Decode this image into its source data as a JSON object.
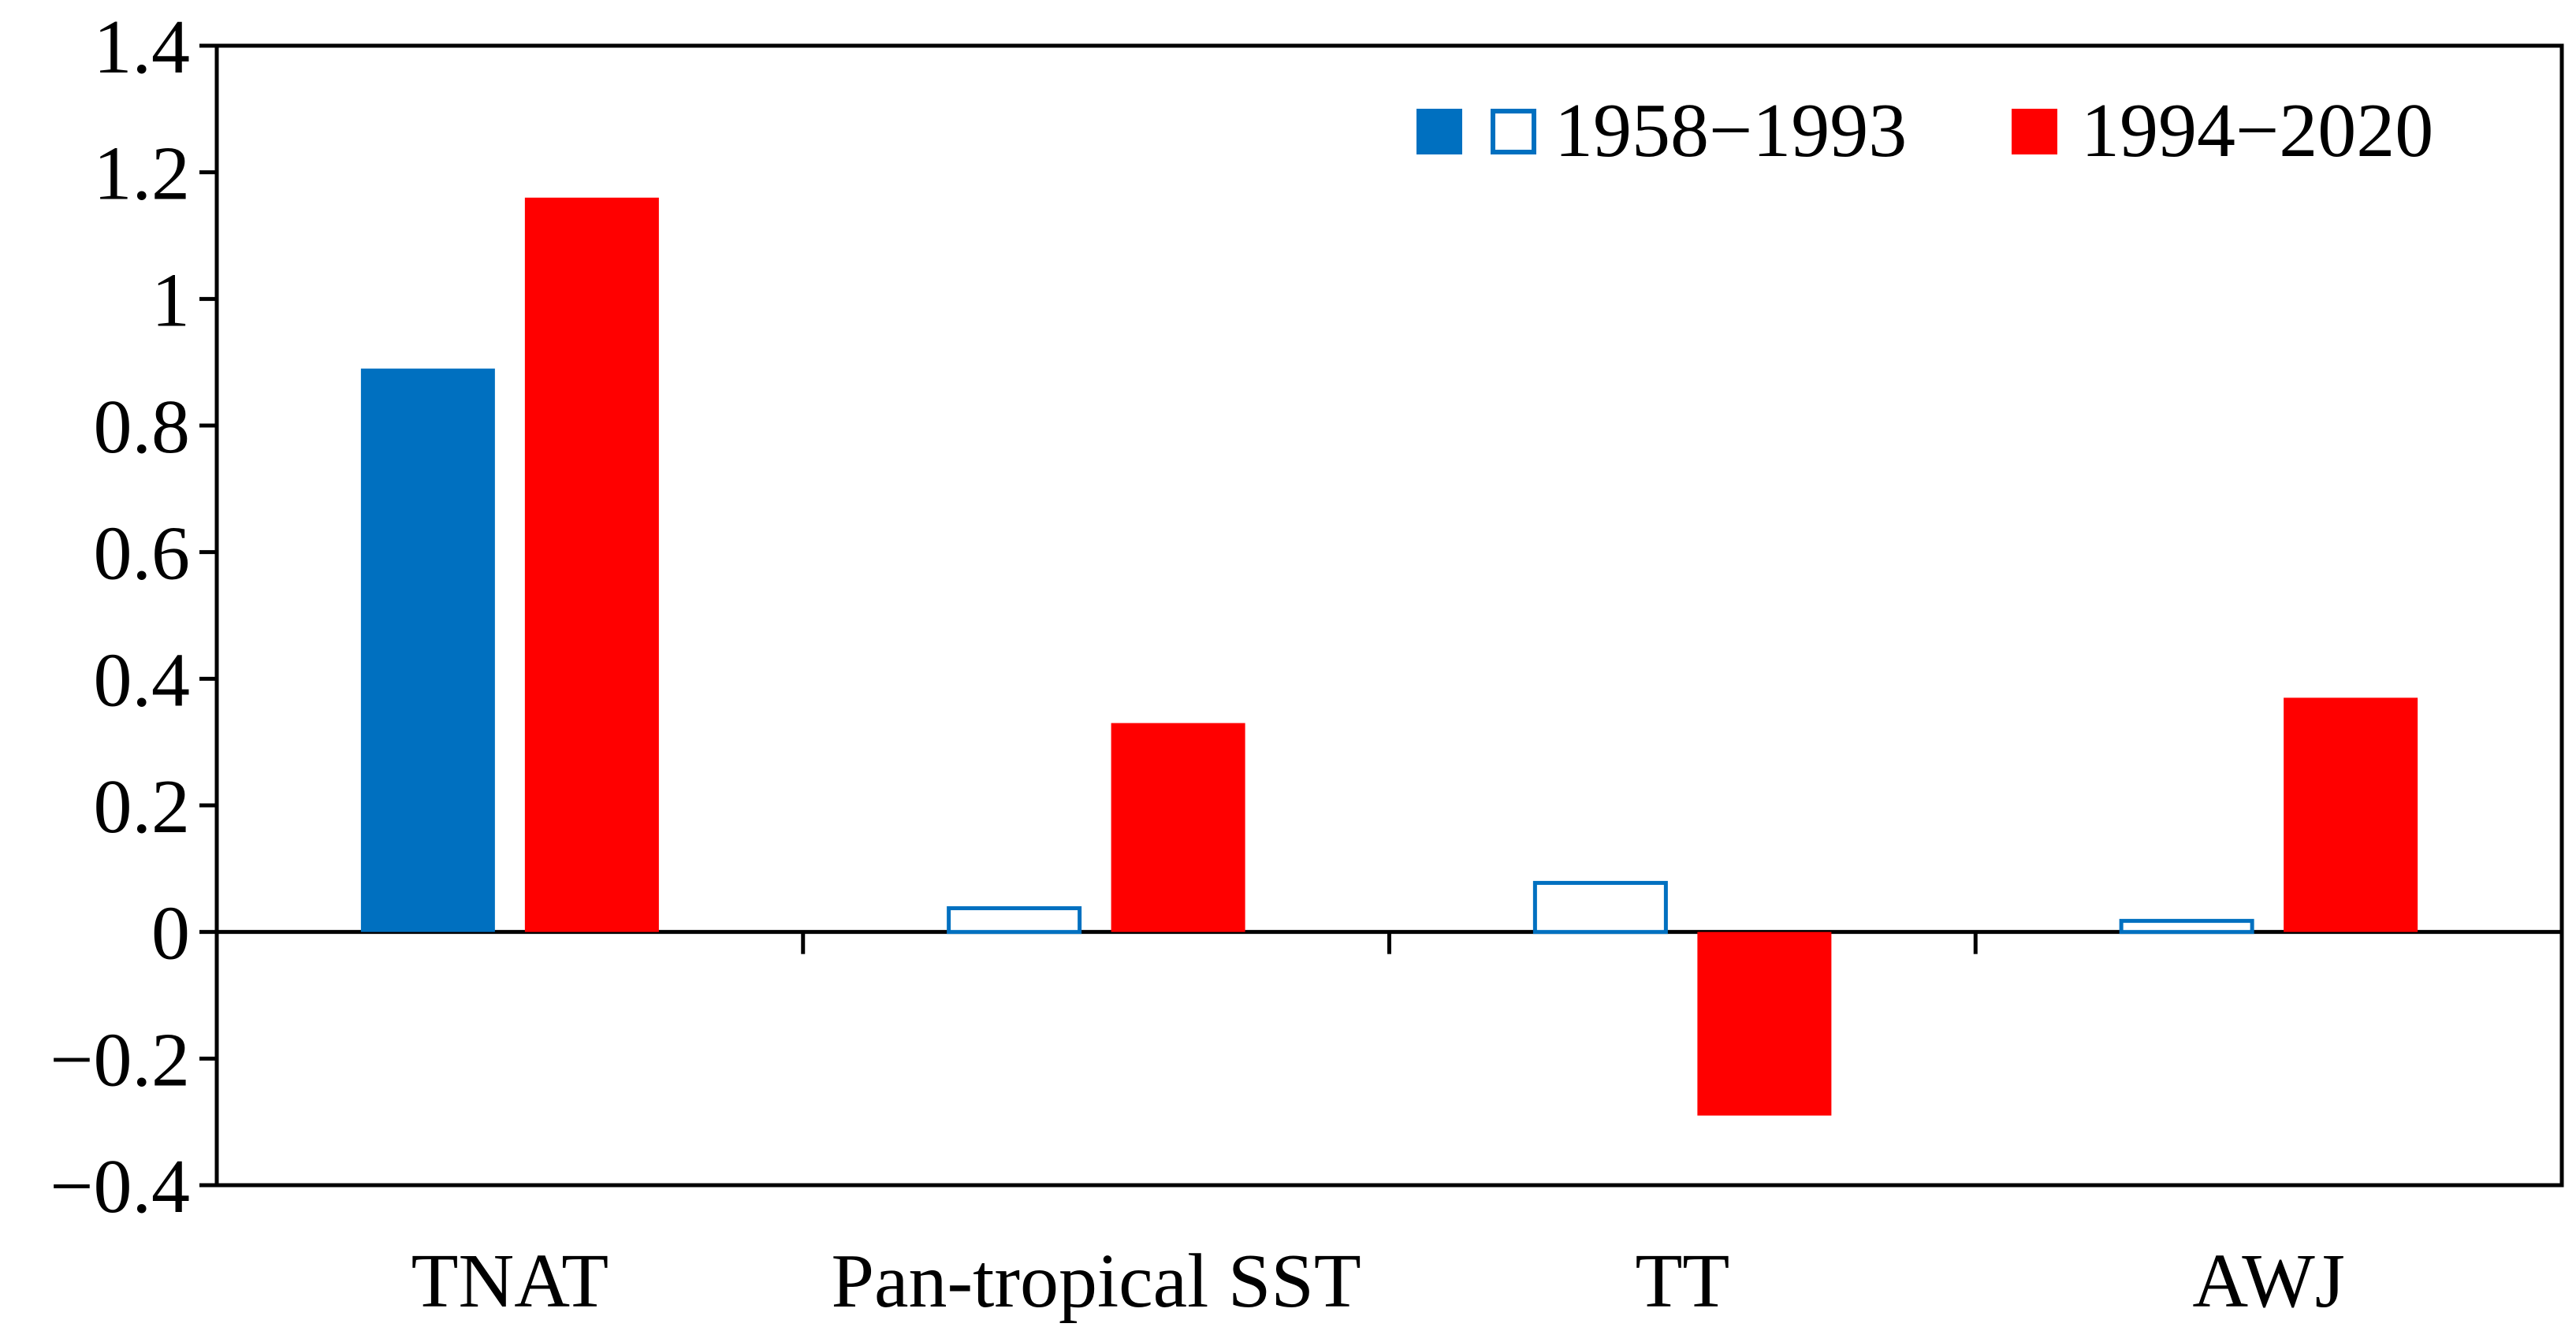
{
  "chart_data": {
    "type": "bar",
    "categories": [
      "TNAT",
      "Pan-tropical SST",
      "TT",
      "AWJ"
    ],
    "series": [
      {
        "name": "1958−1993",
        "color": "#0070c0",
        "values": [
          0.89,
          0.04,
          0.08,
          0.02
        ],
        "filled": [
          true,
          false,
          false,
          false
        ]
      },
      {
        "name": "1994−2020",
        "color": "#ff0000",
        "values": [
          1.16,
          0.33,
          -0.29,
          0.37
        ],
        "filled": [
          true,
          true,
          true,
          true
        ]
      }
    ],
    "ylim": [
      -0.4,
      1.4
    ],
    "yticks": [
      1.4,
      1.2,
      1.0,
      0.8,
      0.6,
      0.4,
      0.2,
      0.0,
      -0.2,
      -0.4
    ],
    "ytick_labels": [
      "1.4",
      "1.2",
      "1",
      "0.8",
      "0.6",
      "0.4",
      "0.2",
      "0",
      "−0.2",
      "−0.4"
    ],
    "title": "",
    "xlabel": "",
    "ylabel": "",
    "grid": false,
    "legend": {
      "placement": "top-right",
      "series1_label": "1958−1993",
      "series2_label": "1994−2020"
    }
  }
}
